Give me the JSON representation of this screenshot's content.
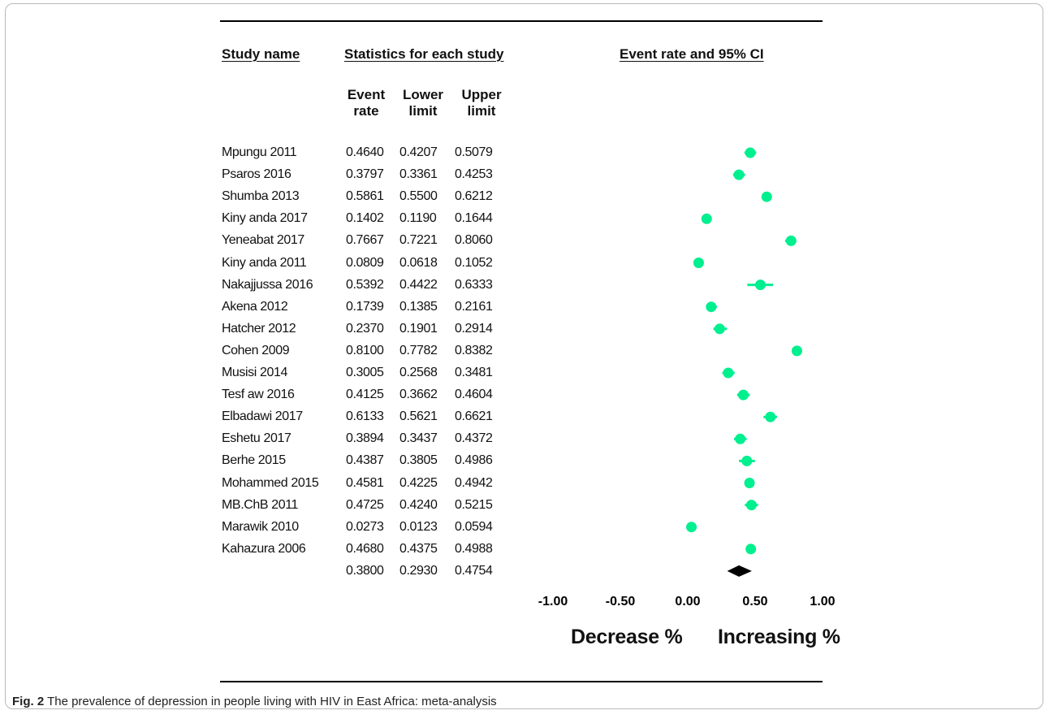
{
  "headers": {
    "study_name": "Study name",
    "statistics": "Statistics for each study",
    "event_rate_ci": "Event rate and 95% CI",
    "col_event": [
      "Event",
      "rate"
    ],
    "col_lower": [
      "Lower",
      "limit"
    ],
    "col_upper": [
      "Upper",
      "limit"
    ]
  },
  "footer": {
    "left_label": "Decrease %",
    "right_label": "Increasing %"
  },
  "caption": {
    "label": "Fig. 2",
    "text": " The prevalence of depression in people living with HIV in East Africa: meta-analysis"
  },
  "colors": {
    "marker": "#00ef8f",
    "summary": "#000000"
  },
  "chart_data": {
    "type": "forest",
    "title": "Event rate and 95% CI",
    "xlim": [
      -1.0,
      1.0
    ],
    "xticks": [
      -1.0,
      -0.5,
      0.0,
      0.5,
      1.0
    ],
    "xtick_labels": [
      "-1.00",
      "-0.50",
      "0.00",
      "0.50",
      "1.00"
    ],
    "studies": [
      {
        "name": "Mpungu 2011",
        "rate": "0.4640",
        "lower": "0.4207",
        "upper": "0.5079"
      },
      {
        "name": "Psaros 2016",
        "rate": "0.3797",
        "lower": "0.3361",
        "upper": "0.4253"
      },
      {
        "name": "Shumba 2013",
        "rate": "0.5861",
        "lower": "0.5500",
        "upper": "0.6212"
      },
      {
        "name": "Kiny anda 2017",
        "rate": "0.1402",
        "lower": "0.1190",
        "upper": "0.1644"
      },
      {
        "name": "Yeneabat 2017",
        "rate": "0.7667",
        "lower": "0.7221",
        "upper": "0.8060"
      },
      {
        "name": "Kiny anda 2011",
        "rate": "0.0809",
        "lower": "0.0618",
        "upper": "0.1052"
      },
      {
        "name": "Nakajjussa 2016",
        "rate": "0.5392",
        "lower": "0.4422",
        "upper": "0.6333"
      },
      {
        "name": "Akena 2012",
        "rate": "0.1739",
        "lower": "0.1385",
        "upper": "0.2161"
      },
      {
        "name": "Hatcher 2012",
        "rate": "0.2370",
        "lower": "0.1901",
        "upper": "0.2914"
      },
      {
        "name": "Cohen 2009",
        "rate": "0.8100",
        "lower": "0.7782",
        "upper": "0.8382"
      },
      {
        "name": "Musisi 2014",
        "rate": "0.3005",
        "lower": "0.2568",
        "upper": "0.3481"
      },
      {
        "name": "Tesf aw 2016",
        "rate": "0.4125",
        "lower": "0.3662",
        "upper": "0.4604"
      },
      {
        "name": "Elbadawi 2017",
        "rate": "0.6133",
        "lower": "0.5621",
        "upper": "0.6621"
      },
      {
        "name": "Eshetu 2017",
        "rate": "0.3894",
        "lower": "0.3437",
        "upper": "0.4372"
      },
      {
        "name": "Berhe 2015",
        "rate": "0.4387",
        "lower": "0.3805",
        "upper": "0.4986"
      },
      {
        "name": "Mohammed 2015",
        "rate": "0.4581",
        "lower": "0.4225",
        "upper": "0.4942"
      },
      {
        "name": "MB.ChB 2011",
        "rate": "0.4725",
        "lower": "0.4240",
        "upper": "0.5215"
      },
      {
        "name": "Marawik 2010",
        "rate": "0.0273",
        "lower": "0.0123",
        "upper": "0.0594"
      },
      {
        "name": "Kahazura 2006",
        "rate": "0.4680",
        "lower": "0.4375",
        "upper": "0.4988"
      }
    ],
    "summary": {
      "name": "",
      "rate": "0.3800",
      "lower": "0.2930",
      "upper": "0.4754"
    }
  }
}
